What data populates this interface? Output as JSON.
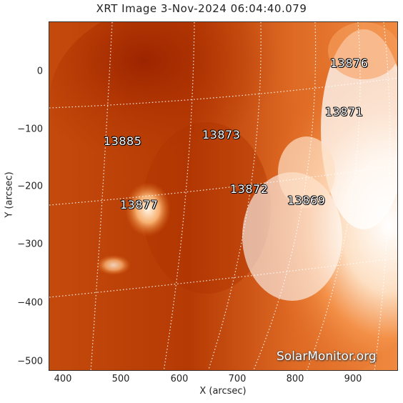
{
  "title": "XRT Image   3-Nov-2024 06:04:40.079",
  "axes": {
    "xlabel": "X (arcsec)",
    "ylabel": "Y (arcsec)",
    "x_ticks": [
      "400",
      "500",
      "600",
      "700",
      "800",
      "900"
    ],
    "y_ticks": [
      "0",
      "−100",
      "−200",
      "−300",
      "−400",
      "−500"
    ]
  },
  "regions": [
    {
      "label": "13876"
    },
    {
      "label": "13871"
    },
    {
      "label": "13885"
    },
    {
      "label": "13873"
    },
    {
      "label": "13872"
    },
    {
      "label": "13869"
    },
    {
      "label": "13877"
    }
  ],
  "watermark": "SolarMonitor.org",
  "colors": {
    "dark_red": "#a82a00",
    "mid_orange": "#d85a14",
    "bright_orange": "#f39048",
    "white": "#ffffff"
  }
}
